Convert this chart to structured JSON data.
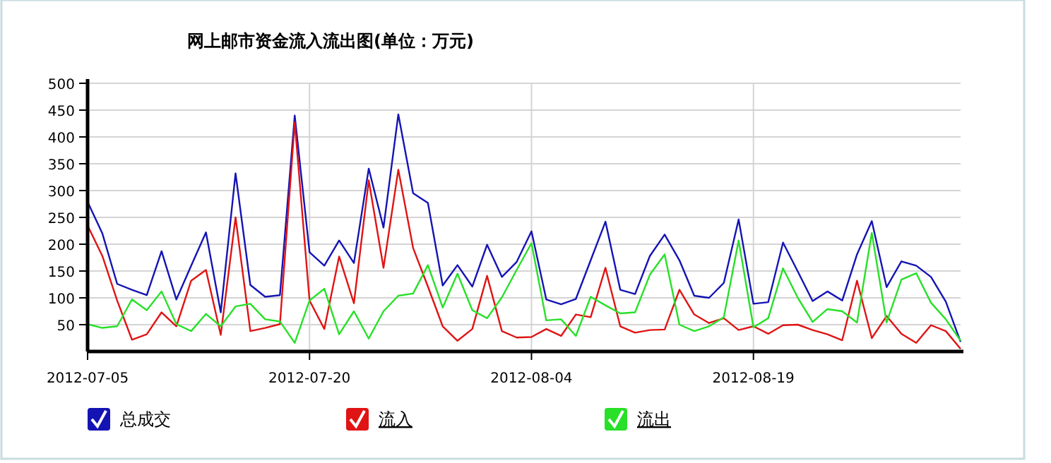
{
  "chart_data": {
    "type": "line",
    "title": "网上邮市资金流入流出图(单位：万元)",
    "x": [
      "2012-07-05",
      "2012-07-06",
      "2012-07-07",
      "2012-07-08",
      "2012-07-09",
      "2012-07-10",
      "2012-07-11",
      "2012-07-12",
      "2012-07-13",
      "2012-07-14",
      "2012-07-15",
      "2012-07-16",
      "2012-07-17",
      "2012-07-18",
      "2012-07-19",
      "2012-07-20",
      "2012-07-21",
      "2012-07-22",
      "2012-07-23",
      "2012-07-24",
      "2012-07-25",
      "2012-07-26",
      "2012-07-27",
      "2012-07-28",
      "2012-07-29",
      "2012-07-30",
      "2012-07-31",
      "2012-08-01",
      "2012-08-02",
      "2012-08-03",
      "2012-08-04",
      "2012-08-05",
      "2012-08-06",
      "2012-08-07",
      "2012-08-08",
      "2012-08-09",
      "2012-08-10",
      "2012-08-11",
      "2012-08-12",
      "2012-08-13",
      "2012-08-14",
      "2012-08-15",
      "2012-08-16",
      "2012-08-17",
      "2012-08-18",
      "2012-08-19",
      "2012-08-20",
      "2012-08-21",
      "2012-08-22",
      "2012-08-23",
      "2012-08-24",
      "2012-08-25",
      "2012-08-26",
      "2012-08-27",
      "2012-08-28",
      "2012-08-29",
      "2012-08-30",
      "2012-08-31",
      "2012-09-01",
      "2012-09-02"
    ],
    "series": [
      {
        "name": "总成交",
        "color": "#1414b4",
        "values": [
          279,
          220,
          126,
          115,
          105,
          187,
          97,
          160,
          222,
          73,
          332,
          124,
          102,
          105,
          440,
          185,
          160,
          207,
          165,
          341,
          231,
          442,
          295,
          277,
          123,
          161,
          121,
          199,
          139,
          167,
          224,
          97,
          88,
          98,
          170,
          242,
          115,
          107,
          178,
          218,
          170,
          104,
          100,
          128,
          246,
          89,
          92,
          203,
          149,
          94,
          112,
          95,
          181,
          243,
          120,
          168,
          160,
          139,
          93,
          18
        ]
      },
      {
        "name": "流入",
        "color": "#e01414",
        "values": [
          235,
          178,
          95,
          22,
          32,
          73,
          47,
          132,
          152,
          31,
          250,
          38,
          44,
          51,
          427,
          95,
          42,
          177,
          90,
          319,
          156,
          339,
          193,
          121,
          47,
          20,
          42,
          141,
          38,
          26,
          27,
          42,
          29,
          69,
          64,
          156,
          47,
          35,
          40,
          41,
          115,
          69,
          53,
          62,
          40,
          47,
          33,
          49,
          50,
          40,
          32,
          21,
          132,
          25,
          66,
          33,
          16,
          49,
          38,
          5
        ]
      },
      {
        "name": "流出",
        "color": "#28e028",
        "values": [
          51,
          44,
          47,
          97,
          77,
          112,
          51,
          38,
          70,
          47,
          84,
          89,
          60,
          56,
          16,
          95,
          117,
          32,
          75,
          24,
          75,
          104,
          108,
          161,
          82,
          145,
          77,
          62,
          101,
          152,
          202,
          58,
          60,
          29,
          102,
          86,
          71,
          73,
          143,
          181,
          50,
          38,
          47,
          64,
          207,
          45,
          62,
          155,
          100,
          55,
          79,
          75,
          54,
          221,
          54,
          134,
          146,
          91,
          60,
          20
        ]
      }
    ],
    "xlim": [
      "2012-07-05",
      "2012-09-02"
    ],
    "xticks": [
      "2012-07-05",
      "2012-07-20",
      "2012-08-04",
      "2012-08-19"
    ],
    "ylim": [
      0,
      500
    ],
    "yticks": [
      50,
      100,
      150,
      200,
      250,
      300,
      350,
      400,
      450,
      500
    ],
    "grid": true,
    "legend": "bottom"
  }
}
